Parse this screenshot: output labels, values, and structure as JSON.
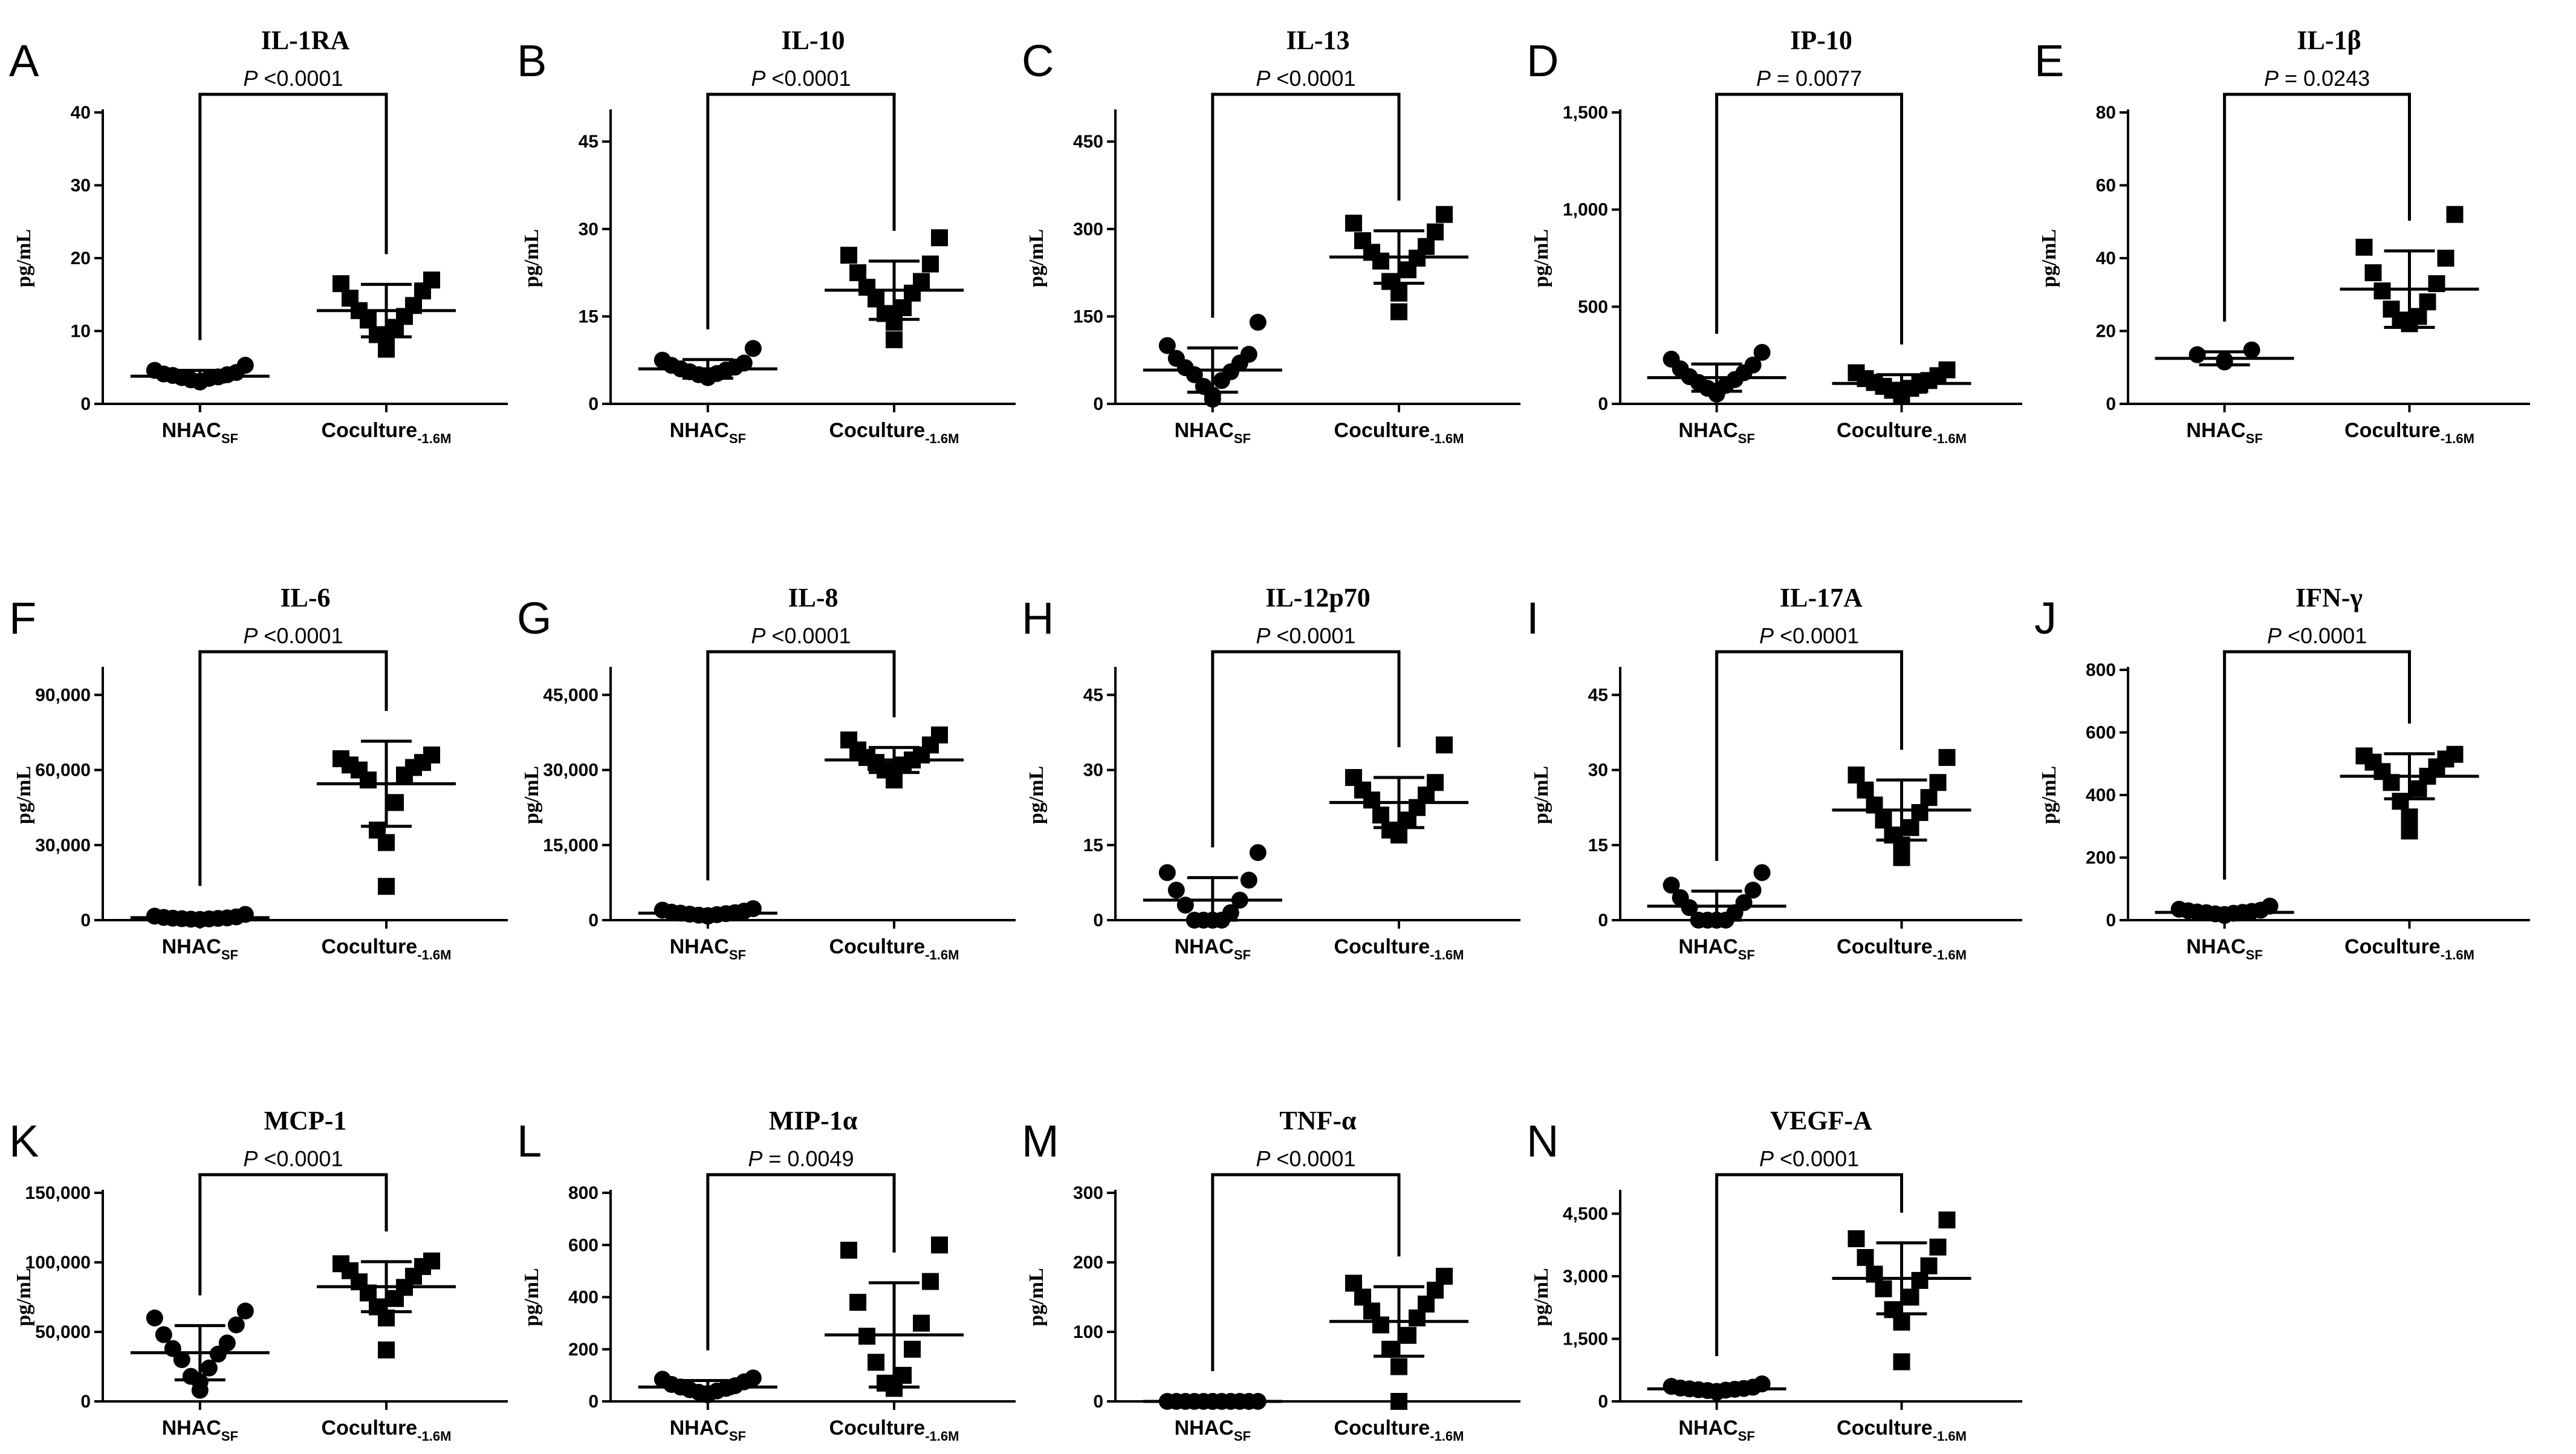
{
  "chart_data": [
    {
      "letter": "A",
      "title": "IL-1RA",
      "ylabel": "pg/mL",
      "type": "scatter",
      "ylim": [
        0,
        40
      ],
      "yticks": [
        0,
        10,
        20,
        30,
        40
      ],
      "ytick_labels": [
        "0",
        "10",
        "20",
        "30",
        "40"
      ],
      "groups": [
        {
          "base": "NHAC",
          "sub": "SF",
          "marker": "circle",
          "mean": 3.8,
          "sd": 0.8,
          "values": [
            3.0,
            3.1,
            3.3,
            3.5,
            3.6,
            3.7,
            3.9,
            4.0,
            4.1,
            4.3,
            4.6,
            5.3
          ]
        },
        {
          "base": "Coculture",
          "sub": "-1.6M",
          "marker": "square",
          "mean": 12.8,
          "sd": 3.6,
          "values": [
            7.5,
            9.0,
            9.5,
            10.5,
            11.5,
            12.0,
            12.8,
            13.5,
            14.5,
            15.5,
            16.5,
            17.0
          ]
        }
      ],
      "pvalue": {
        "prefix": "P",
        "text": "<0.0001"
      }
    },
    {
      "letter": "B",
      "title": "IL-10",
      "ylabel": "pg/mL",
      "type": "scatter",
      "ylim": [
        0,
        50
      ],
      "yticks": [
        0,
        15,
        30,
        45
      ],
      "ytick_labels": [
        "0",
        "15",
        "30",
        "45"
      ],
      "groups": [
        {
          "base": "NHAC",
          "sub": "SF",
          "marker": "circle",
          "mean": 6.0,
          "sd": 1.6,
          "values": [
            4.5,
            4.8,
            5.0,
            5.2,
            5.5,
            5.8,
            6.0,
            6.3,
            6.6,
            7.0,
            7.5,
            9.5
          ]
        },
        {
          "base": "Coculture",
          "sub": "-1.6M",
          "marker": "square",
          "mean": 19.5,
          "sd": 5.0,
          "values": [
            11.0,
            14.0,
            15.5,
            16.5,
            18.0,
            19.0,
            20.0,
            21.0,
            22.5,
            24.0,
            25.5,
            28.5
          ]
        }
      ],
      "pvalue": {
        "prefix": "P",
        "text": "<0.0001"
      }
    },
    {
      "letter": "C",
      "title": "IL-13",
      "ylabel": "pg/mL",
      "type": "scatter",
      "ylim": [
        0,
        500
      ],
      "yticks": [
        0,
        150,
        300,
        450
      ],
      "ytick_labels": [
        "0",
        "150",
        "300",
        "450"
      ],
      "groups": [
        {
          "base": "NHAC",
          "sub": "SF",
          "marker": "circle",
          "mean": 58,
          "sd": 38,
          "values": [
            8,
            15,
            30,
            40,
            50,
            55,
            62,
            70,
            78,
            85,
            100,
            140
          ]
        },
        {
          "base": "Coculture",
          "sub": "-1.6M",
          "marker": "square",
          "mean": 252,
          "sd": 45,
          "values": [
            158,
            190,
            210,
            230,
            245,
            250,
            260,
            270,
            280,
            295,
            310,
            325
          ]
        }
      ],
      "pvalue": {
        "prefix": "P",
        "text": "<0.0001"
      }
    },
    {
      "letter": "D",
      "title": "IP-10",
      "ylabel": "pg/mL",
      "type": "scatter",
      "ylim": [
        0,
        1500
      ],
      "yticks": [
        0,
        500,
        1000,
        1500
      ],
      "ytick_labels": [
        "0",
        "500",
        "1,000",
        "1,500"
      ],
      "groups": [
        {
          "base": "NHAC",
          "sub": "SF",
          "marker": "circle",
          "mean": 135,
          "sd": 70,
          "values": [
            50,
            65,
            80,
            95,
            110,
            125,
            140,
            160,
            180,
            200,
            230,
            265
          ]
        },
        {
          "base": "Coculture",
          "sub": "-1.6M",
          "marker": "square",
          "mean": 105,
          "sd": 45,
          "values": [
            45,
            60,
            70,
            80,
            90,
            100,
            110,
            120,
            130,
            145,
            160,
            175
          ]
        }
      ],
      "pvalue": {
        "prefix": "P",
        "text": "= 0.0077"
      }
    },
    {
      "letter": "E",
      "title": "IL-1β",
      "ylabel": "pg/mL",
      "type": "scatter",
      "ylim": [
        0,
        80
      ],
      "yticks": [
        0,
        20,
        40,
        60,
        80
      ],
      "ytick_labels": [
        "0",
        "20",
        "40",
        "60",
        "80"
      ],
      "groups": [
        {
          "base": "NHAC",
          "sub": "SF",
          "marker": "circle",
          "mean": 12.5,
          "sd": 1.8,
          "values": [
            11.5,
            12.0,
            13.5,
            14.8
          ]
        },
        {
          "base": "Coculture",
          "sub": "-1.6M",
          "marker": "square",
          "mean": 31.5,
          "sd": 10.5,
          "values": [
            22,
            22.5,
            23,
            24,
            26,
            28,
            31,
            33,
            36,
            40,
            43,
            52
          ]
        }
      ],
      "pvalue": {
        "prefix": "P",
        "text": "= 0.0243"
      }
    },
    {
      "letter": "F",
      "title": "IL-6",
      "ylabel": "pg/mL",
      "type": "scatter",
      "ylim": [
        0,
        100000
      ],
      "yticks": [
        0,
        30000,
        60000,
        90000
      ],
      "ytick_labels": [
        "0",
        "30,000",
        "60,000",
        "90,000"
      ],
      "groups": [
        {
          "base": "NHAC",
          "sub": "SF",
          "marker": "circle",
          "mean": 1000,
          "sd": 600,
          "values": [
            200,
            300,
            400,
            500,
            600,
            700,
            800,
            900,
            1100,
            1300,
            1600,
            2300
          ]
        },
        {
          "base": "Coculture",
          "sub": "-1.6M",
          "marker": "square",
          "mean": 54500,
          "sd": 17000,
          "values": [
            13500,
            31000,
            36000,
            47000,
            56000,
            58000,
            60000,
            61000,
            62000,
            63000,
            64500,
            66000
          ]
        }
      ],
      "pvalue": {
        "prefix": "P",
        "text": "<0.0001"
      }
    },
    {
      "letter": "G",
      "title": "IL-8",
      "ylabel": "pg/mL",
      "type": "scatter",
      "ylim": [
        0,
        50000
      ],
      "yticks": [
        0,
        15000,
        30000,
        45000
      ],
      "ytick_labels": [
        "0",
        "15,000",
        "30,000",
        "45,000"
      ],
      "groups": [
        {
          "base": "NHAC",
          "sub": "SF",
          "marker": "circle",
          "mean": 1400,
          "sd": 500,
          "values": [
            800,
            900,
            1000,
            1100,
            1200,
            1300,
            1400,
            1500,
            1600,
            1800,
            2000,
            2300
          ]
        },
        {
          "base": "Coculture",
          "sub": "-1.6M",
          "marker": "square",
          "mean": 32000,
          "sd": 2500,
          "values": [
            28000,
            29000,
            30000,
            31000,
            31500,
            32000,
            32500,
            33000,
            34000,
            35000,
            36000,
            37000
          ]
        }
      ],
      "pvalue": {
        "prefix": "P",
        "text": "<0.0001"
      }
    },
    {
      "letter": "H",
      "title": "IL-12p70",
      "ylabel": "pg/mL",
      "type": "scatter",
      "ylim": [
        0,
        50
      ],
      "yticks": [
        0,
        15,
        30,
        45
      ],
      "ytick_labels": [
        "0",
        "15",
        "30",
        "45"
      ],
      "groups": [
        {
          "base": "NHAC",
          "sub": "SF",
          "marker": "circle",
          "mean": 4.0,
          "sd": 4.5,
          "values": [
            0,
            0,
            0,
            0,
            0,
            1.5,
            3,
            4,
            6,
            8,
            9.5,
            13.5
          ]
        },
        {
          "base": "Coculture",
          "sub": "-1.6M",
          "marker": "square",
          "mean": 23.5,
          "sd": 5.0,
          "values": [
            17,
            17.5,
            18,
            20,
            21,
            22.5,
            24,
            25,
            26,
            27.5,
            28.5,
            35
          ]
        }
      ],
      "pvalue": {
        "prefix": "P",
        "text": "<0.0001"
      }
    },
    {
      "letter": "I",
      "title": "IL-17A",
      "ylabel": "pg/mL",
      "type": "scatter",
      "ylim": [
        0,
        50
      ],
      "yticks": [
        0,
        15,
        30,
        45
      ],
      "ytick_labels": [
        "0",
        "15",
        "30",
        "45"
      ],
      "groups": [
        {
          "base": "NHAC",
          "sub": "SF",
          "marker": "circle",
          "mean": 2.8,
          "sd": 3.0,
          "values": [
            0,
            0,
            0,
            0,
            0,
            1.5,
            2.5,
            3.5,
            4.5,
            6,
            7,
            9.5
          ]
        },
        {
          "base": "Coculture",
          "sub": "-1.6M",
          "marker": "square",
          "mean": 22,
          "sd": 6,
          "values": [
            12.5,
            15,
            17,
            18.5,
            20,
            21.5,
            23,
            24.5,
            26,
            27.5,
            29,
            32.5
          ]
        }
      ],
      "pvalue": {
        "prefix": "P",
        "text": "<0.0001"
      }
    },
    {
      "letter": "J",
      "title": "IFN-γ",
      "ylabel": "pg/mL",
      "type": "scatter",
      "ylim": [
        0,
        800
      ],
      "yticks": [
        0,
        200,
        400,
        600,
        800
      ],
      "ytick_labels": [
        "0",
        "200",
        "400",
        "600",
        "800"
      ],
      "groups": [
        {
          "base": "NHAC",
          "sub": "SF",
          "marker": "circle",
          "mean": 25,
          "sd": 8,
          "values": [
            15,
            18,
            20,
            22,
            24,
            25,
            26,
            28,
            30,
            32,
            35,
            45
          ]
        },
        {
          "base": "Coculture",
          "sub": "-1.6M",
          "marker": "square",
          "mean": 460,
          "sd": 72,
          "values": [
            285,
            330,
            380,
            420,
            440,
            460,
            475,
            490,
            505,
            515,
            525,
            530
          ]
        }
      ],
      "pvalue": {
        "prefix": "P",
        "text": "<0.0001"
      }
    },
    {
      "letter": "K",
      "title": "MCP-1",
      "ylabel": "pg/mL",
      "type": "scatter",
      "ylim": [
        0,
        150000
      ],
      "yticks": [
        0,
        50000,
        100000,
        150000
      ],
      "ytick_labels": [
        "0",
        "50,000",
        "100,000",
        "150,000"
      ],
      "groups": [
        {
          "base": "NHAC",
          "sub": "SF",
          "marker": "circle",
          "mean": 35000,
          "sd": 19500,
          "values": [
            8000,
            14000,
            18000,
            24000,
            30000,
            34000,
            38000,
            42000,
            48000,
            55000,
            60000,
            65000
          ]
        },
        {
          "base": "Coculture",
          "sub": "-1.6M",
          "marker": "square",
          "mean": 82500,
          "sd": 18000,
          "values": [
            37000,
            60000,
            68000,
            74000,
            78000,
            82000,
            86000,
            90000,
            94000,
            97000,
            99000,
            101000
          ]
        }
      ],
      "pvalue": {
        "prefix": "P",
        "text": "<0.0001"
      }
    },
    {
      "letter": "L",
      "title": "MIP-1α",
      "ylabel": "pg/mL",
      "type": "scatter",
      "ylim": [
        0,
        800
      ],
      "yticks": [
        0,
        200,
        400,
        600,
        800
      ],
      "ytick_labels": [
        "0",
        "200",
        "400",
        "600",
        "800"
      ],
      "groups": [
        {
          "base": "NHAC",
          "sub": "SF",
          "marker": "circle",
          "mean": 55,
          "sd": 25,
          "values": [
            25,
            30,
            35,
            40,
            45,
            50,
            55,
            60,
            65,
            75,
            85,
            90
          ]
        },
        {
          "base": "Coculture",
          "sub": "-1.6M",
          "marker": "square",
          "mean": 255,
          "sd": 200,
          "values": [
            50,
            60,
            70,
            100,
            150,
            200,
            250,
            300,
            380,
            460,
            580,
            600
          ]
        }
      ],
      "pvalue": {
        "prefix": "P",
        "text": "= 0.0049"
      }
    },
    {
      "letter": "M",
      "title": "TNF-α",
      "ylabel": "pg/mL",
      "type": "scatter",
      "ylim": [
        0,
        300
      ],
      "yticks": [
        0,
        100,
        200,
        300
      ],
      "ytick_labels": [
        "0",
        "100",
        "200",
        "300"
      ],
      "groups": [
        {
          "base": "NHAC",
          "sub": "SF",
          "marker": "circle",
          "mean": 0,
          "sd": 0,
          "values": [
            0,
            0,
            0,
            0,
            0,
            0,
            0,
            0,
            0,
            0,
            0,
            0
          ]
        },
        {
          "base": "Coculture",
          "sub": "-1.6M",
          "marker": "square",
          "mean": 115,
          "sd": 50,
          "values": [
            0,
            50,
            75,
            95,
            110,
            120,
            130,
            140,
            150,
            160,
            170,
            180
          ]
        }
      ],
      "pvalue": {
        "prefix": "P",
        "text": "<0.0001"
      }
    },
    {
      "letter": "N",
      "title": "VEGF-A",
      "ylabel": "pg/mL",
      "type": "scatter",
      "ylim": [
        0,
        5000
      ],
      "yticks": [
        0,
        1500,
        3000,
        4500
      ],
      "ytick_labels": [
        "0",
        "1,500",
        "3,000",
        "4,500"
      ],
      "groups": [
        {
          "base": "NHAC",
          "sub": "SF",
          "marker": "circle",
          "mean": 300,
          "sd": 60,
          "values": [
            220,
            240,
            260,
            270,
            280,
            290,
            300,
            310,
            320,
            340,
            360,
            420
          ]
        },
        {
          "base": "Coculture",
          "sub": "-1.6M",
          "marker": "square",
          "mean": 2950,
          "sd": 850,
          "values": [
            950,
            1900,
            2200,
            2500,
            2700,
            2900,
            3050,
            3250,
            3450,
            3700,
            3900,
            4350
          ]
        }
      ],
      "pvalue": {
        "prefix": "P",
        "text": "<0.0001"
      }
    }
  ]
}
